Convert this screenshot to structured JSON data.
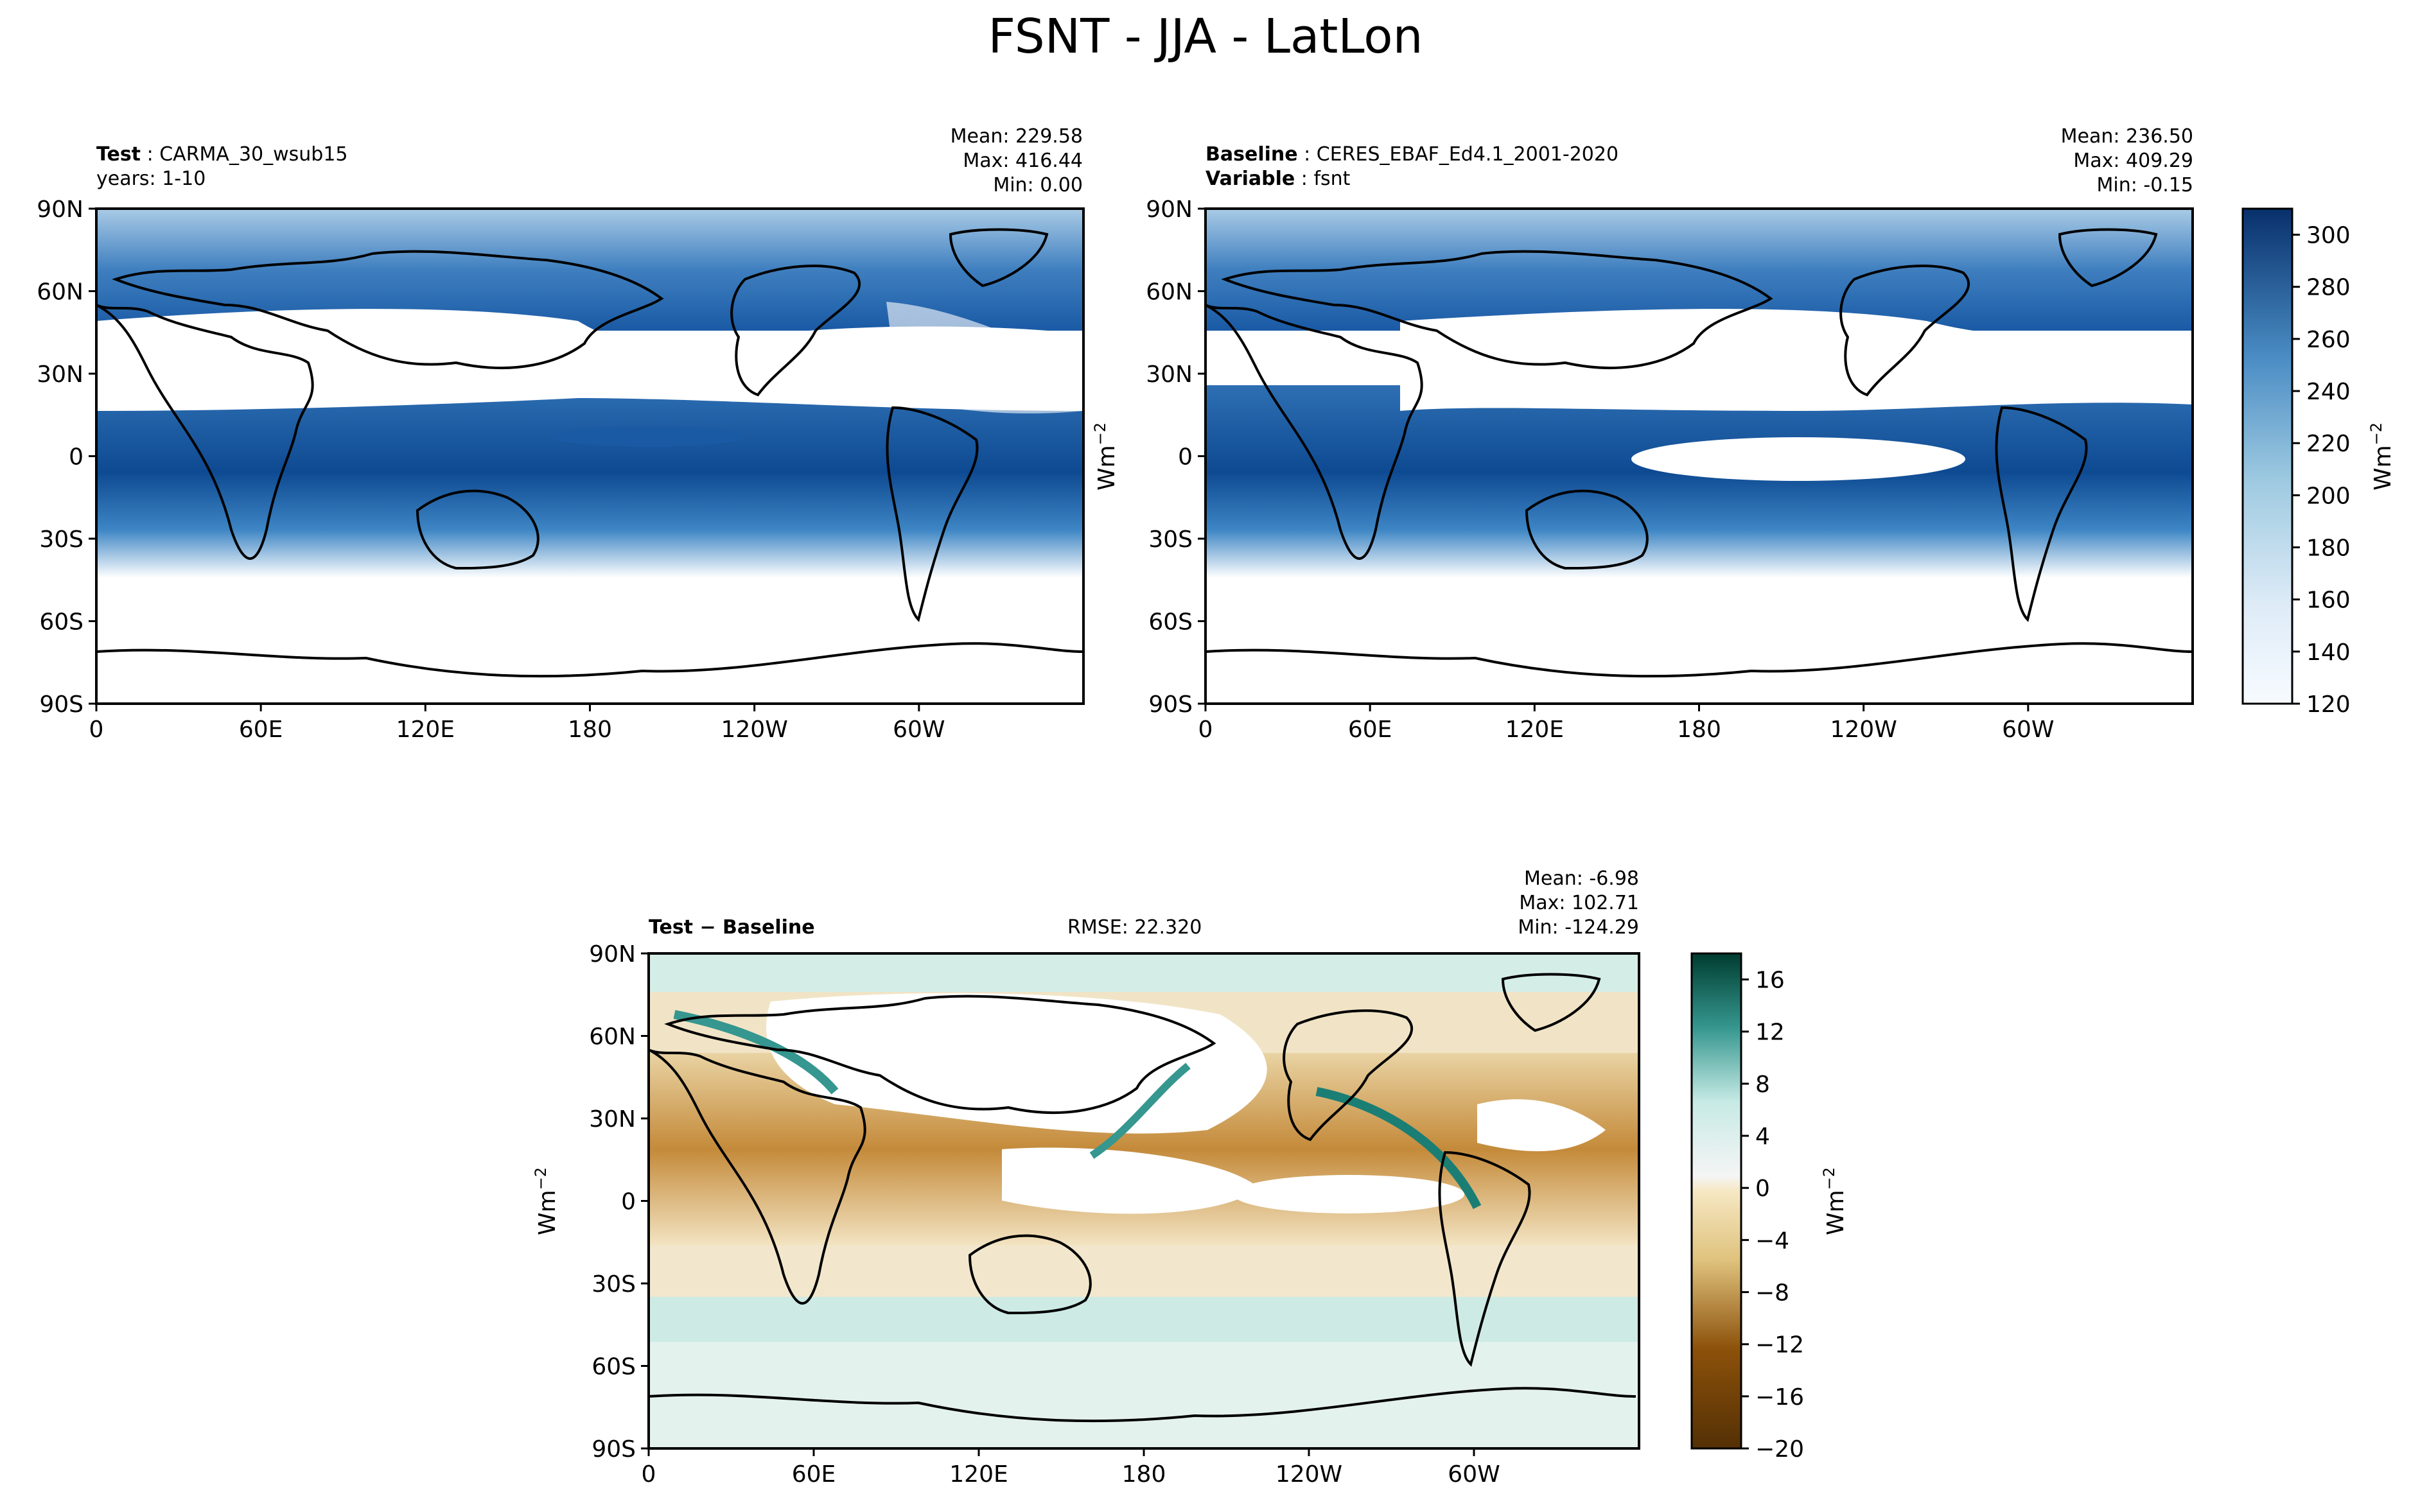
{
  "title": "FSNT - JJA - LatLon",
  "panels": {
    "test": {
      "label_bold": "Test",
      "label_text": "CARMA_30_wsub15",
      "line2": "years: 1-10",
      "mean": "Mean: 229.58",
      "max": "Max: 416.44",
      "min": "Min:  0.00"
    },
    "baseline": {
      "label_bold": "Baseline",
      "label_text": "CERES_EBAF_Ed4.1_2001-2020",
      "line2_bold": "Variable",
      "line2_text": "fsnt",
      "mean": "Mean: 236.50",
      "max": "Max: 409.29",
      "min": "Min: -0.15"
    },
    "diff": {
      "label_bold": "Test − Baseline",
      "rmse": "RMSE: 22.320",
      "mean": "Mean: -6.98",
      "max": "Max: 102.71",
      "min": "Min: -124.29"
    }
  },
  "units": "Wm",
  "units_exp": "−2",
  "chart_data": [
    {
      "type": "heatmap",
      "name": "Test",
      "xticks": [
        "0",
        "60E",
        "120E",
        "180",
        "120W",
        "60W"
      ],
      "yticks": [
        "90N",
        "60N",
        "30N",
        "0",
        "30S",
        "60S",
        "90S"
      ],
      "xlim": [
        0,
        360
      ],
      "ylim": [
        -90,
        90
      ],
      "colorbar_range": [
        120,
        310
      ],
      "colormap": "Blues",
      "colorbar_ticks": [
        "300",
        "280",
        "260",
        "240",
        "220",
        "200",
        "180",
        "160",
        "140",
        "120"
      ],
      "colorbar_label": "Wm−2"
    },
    {
      "type": "heatmap",
      "name": "Baseline",
      "xticks": [
        "0",
        "60E",
        "120E",
        "180",
        "120W",
        "60W"
      ],
      "yticks": [
        "90N",
        "60N",
        "30N",
        "0",
        "30S",
        "60S",
        "90S"
      ],
      "xlim": [
        0,
        360
      ],
      "ylim": [
        -90,
        90
      ],
      "colorbar_range": [
        120,
        310
      ],
      "colormap": "Blues"
    },
    {
      "type": "heatmap",
      "name": "Test − Baseline",
      "xticks": [
        "0",
        "60E",
        "120E",
        "180",
        "120W",
        "60W"
      ],
      "yticks": [
        "90N",
        "60N",
        "30N",
        "0",
        "30S",
        "60S",
        "90S"
      ],
      "xlim": [
        0,
        360
      ],
      "ylim": [
        -90,
        90
      ],
      "colorbar_range": [
        -20,
        18
      ],
      "colormap": "BrBG",
      "colorbar_ticks": [
        "16",
        "12",
        "8",
        "4",
        "0",
        "−4",
        "−8",
        "−12",
        "−16",
        "−20"
      ],
      "colorbar_label": "Wm−2"
    }
  ],
  "colors": {
    "blue_dark": "#0b3a78",
    "blue_mid": "#4a8cc4",
    "blue_light": "#c6dbef",
    "teal_dark": "#01665e",
    "teal_light": "#c7eae5",
    "brown_dark": "#8c510a",
    "tan": "#dfc27d",
    "cream": "#f6e8c3"
  }
}
